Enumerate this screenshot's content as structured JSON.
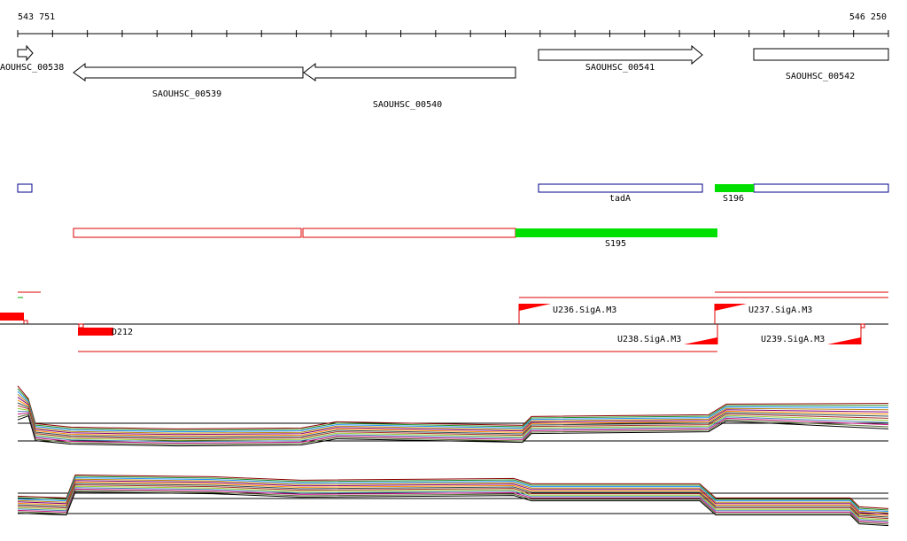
{
  "ruler": {
    "start": "543 751",
    "end": "546 250"
  },
  "genes": [
    {
      "label": "AOUHSC_00538"
    },
    {
      "label": "SAOUHSC_00539"
    },
    {
      "label": "SAOUHSC_00540"
    },
    {
      "label": "SAOUHSC_00541"
    },
    {
      "label": "SAOUHSC_00542"
    }
  ],
  "features": [
    {
      "label": "tadA"
    },
    {
      "label": "S196"
    },
    {
      "label": "S195"
    }
  ],
  "promoters": [
    {
      "label": "U236.SigA.M3"
    },
    {
      "label": "U237.SigA.M3"
    },
    {
      "label": "U238.SigA.M3"
    },
    {
      "label": "U239.SigA.M3"
    },
    {
      "label": "D212"
    }
  ]
}
